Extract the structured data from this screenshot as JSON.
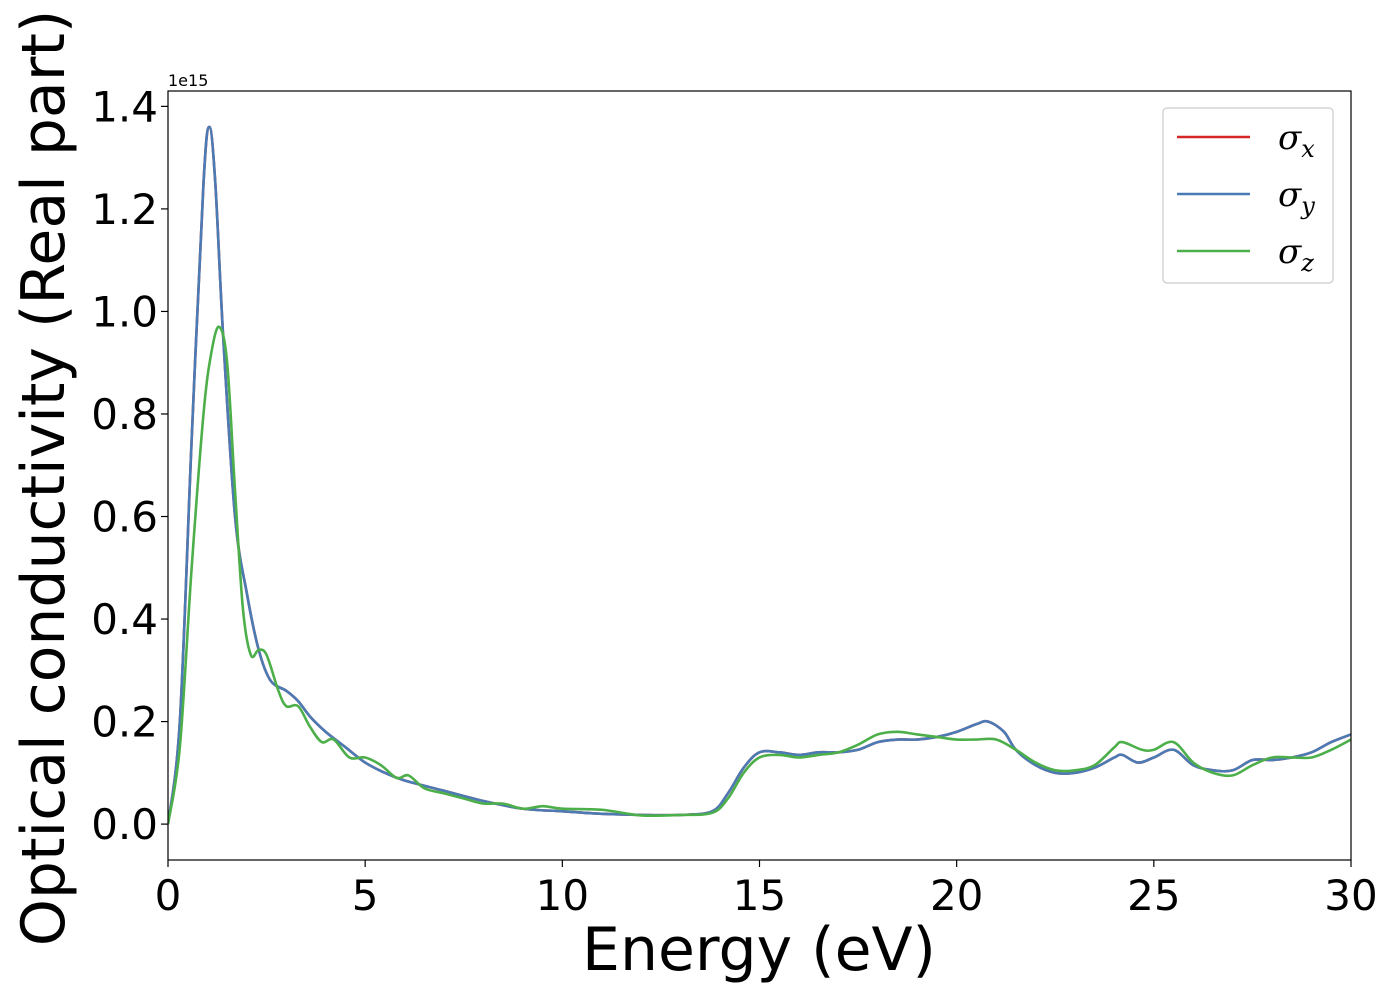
{
  "chart_data": {
    "type": "line",
    "xlabel": "Energy (eV)",
    "ylabel": "Optical conductivity (Real part)",
    "y_offset_label": "1e15",
    "xlim": [
      0,
      30
    ],
    "ylim": [
      -0.07,
      1.43
    ],
    "x_ticks": [
      0,
      5,
      10,
      15,
      20,
      25,
      30
    ],
    "x_tick_labels": [
      "0",
      "5",
      "10",
      "15",
      "20",
      "25",
      "30"
    ],
    "y_ticks": [
      0.0,
      0.2,
      0.4,
      0.6,
      0.8,
      1.0,
      1.2,
      1.4
    ],
    "y_tick_labels": [
      "0.0",
      "0.2",
      "0.4",
      "0.6",
      "0.8",
      "1.0",
      "1.2",
      "1.4"
    ],
    "grid": false,
    "legend_position": "top-right",
    "series": [
      {
        "name": "σx",
        "legend_base": "σ",
        "legend_sub": "x",
        "color": "#d62728",
        "x": [
          0,
          0.3,
          0.6,
          0.9,
          1.05,
          1.2,
          1.4,
          1.7,
          2.0,
          2.3,
          2.6,
          3.0,
          3.3,
          3.6,
          4.0,
          4.5,
          5.0,
          5.5,
          6.0,
          7.0,
          8.0,
          9.0,
          10.0,
          11.0,
          12.0,
          13.0,
          13.8,
          14.2,
          14.6,
          15.0,
          15.5,
          16.0,
          16.5,
          17.0,
          17.5,
          18.0,
          18.5,
          19.0,
          19.5,
          20.0,
          20.5,
          20.8,
          21.2,
          21.5,
          22.0,
          22.5,
          23.0,
          23.5,
          24.0,
          24.2,
          24.6,
          25.0,
          25.5,
          26.0,
          26.5,
          27.0,
          27.5,
          28.0,
          28.5,
          29.0,
          29.5,
          30.0
        ],
        "values": [
          0.0,
          0.2,
          0.75,
          1.25,
          1.36,
          1.25,
          0.95,
          0.6,
          0.45,
          0.34,
          0.28,
          0.26,
          0.24,
          0.21,
          0.18,
          0.15,
          0.12,
          0.1,
          0.085,
          0.065,
          0.045,
          0.03,
          0.025,
          0.02,
          0.018,
          0.018,
          0.025,
          0.06,
          0.11,
          0.14,
          0.14,
          0.135,
          0.14,
          0.14,
          0.145,
          0.16,
          0.165,
          0.165,
          0.17,
          0.18,
          0.195,
          0.2,
          0.18,
          0.145,
          0.115,
          0.1,
          0.1,
          0.11,
          0.13,
          0.135,
          0.12,
          0.13,
          0.145,
          0.115,
          0.105,
          0.105,
          0.125,
          0.125,
          0.13,
          0.14,
          0.16,
          0.175
        ]
      },
      {
        "name": "σy",
        "legend_base": "σ",
        "legend_sub": "y",
        "color": "#4a7bb5",
        "x": [
          0,
          0.3,
          0.6,
          0.9,
          1.05,
          1.2,
          1.4,
          1.7,
          2.0,
          2.3,
          2.6,
          3.0,
          3.3,
          3.6,
          4.0,
          4.5,
          5.0,
          5.5,
          6.0,
          7.0,
          8.0,
          9.0,
          10.0,
          11.0,
          12.0,
          13.0,
          13.8,
          14.2,
          14.6,
          15.0,
          15.5,
          16.0,
          16.5,
          17.0,
          17.5,
          18.0,
          18.5,
          19.0,
          19.5,
          20.0,
          20.5,
          20.8,
          21.2,
          21.5,
          22.0,
          22.5,
          23.0,
          23.5,
          24.0,
          24.2,
          24.6,
          25.0,
          25.5,
          26.0,
          26.5,
          27.0,
          27.5,
          28.0,
          28.5,
          29.0,
          29.5,
          30.0
        ],
        "values": [
          0.0,
          0.2,
          0.75,
          1.25,
          1.36,
          1.25,
          0.95,
          0.6,
          0.45,
          0.34,
          0.28,
          0.26,
          0.24,
          0.21,
          0.18,
          0.15,
          0.12,
          0.1,
          0.085,
          0.065,
          0.045,
          0.03,
          0.025,
          0.02,
          0.018,
          0.018,
          0.025,
          0.06,
          0.11,
          0.14,
          0.14,
          0.135,
          0.14,
          0.14,
          0.145,
          0.16,
          0.165,
          0.165,
          0.17,
          0.18,
          0.195,
          0.2,
          0.18,
          0.145,
          0.115,
          0.1,
          0.1,
          0.11,
          0.13,
          0.135,
          0.12,
          0.13,
          0.145,
          0.115,
          0.105,
          0.105,
          0.125,
          0.125,
          0.13,
          0.14,
          0.16,
          0.175
        ]
      },
      {
        "name": "σz",
        "legend_base": "σ",
        "legend_sub": "z",
        "color": "#4daf4a",
        "x": [
          0,
          0.3,
          0.6,
          0.9,
          1.1,
          1.3,
          1.5,
          1.7,
          1.9,
          2.1,
          2.3,
          2.5,
          2.8,
          3.0,
          3.3,
          3.6,
          3.9,
          4.2,
          4.6,
          5.0,
          5.4,
          5.8,
          6.1,
          6.5,
          7.0,
          7.5,
          8.0,
          8.5,
          9.0,
          9.5,
          10.0,
          11.0,
          12.0,
          13.0,
          13.8,
          14.2,
          14.6,
          15.0,
          15.5,
          16.0,
          16.5,
          17.0,
          17.5,
          18.0,
          18.5,
          19.0,
          19.5,
          20.0,
          20.5,
          21.0,
          21.5,
          22.0,
          22.5,
          23.0,
          23.5,
          24.0,
          24.2,
          24.7,
          25.0,
          25.5,
          26.0,
          26.5,
          27.0,
          27.5,
          28.0,
          28.5,
          29.0,
          29.5,
          30.0
        ],
        "values": [
          0.0,
          0.15,
          0.5,
          0.8,
          0.92,
          0.97,
          0.9,
          0.65,
          0.42,
          0.33,
          0.34,
          0.33,
          0.26,
          0.23,
          0.23,
          0.19,
          0.16,
          0.165,
          0.13,
          0.13,
          0.115,
          0.09,
          0.095,
          0.07,
          0.06,
          0.05,
          0.04,
          0.04,
          0.03,
          0.035,
          0.03,
          0.028,
          0.017,
          0.018,
          0.022,
          0.05,
          0.1,
          0.13,
          0.135,
          0.13,
          0.135,
          0.14,
          0.155,
          0.175,
          0.18,
          0.175,
          0.17,
          0.165,
          0.165,
          0.165,
          0.145,
          0.12,
          0.105,
          0.105,
          0.115,
          0.15,
          0.16,
          0.145,
          0.145,
          0.16,
          0.12,
          0.1,
          0.095,
          0.115,
          0.13,
          0.13,
          0.13,
          0.145,
          0.165
        ]
      }
    ]
  }
}
